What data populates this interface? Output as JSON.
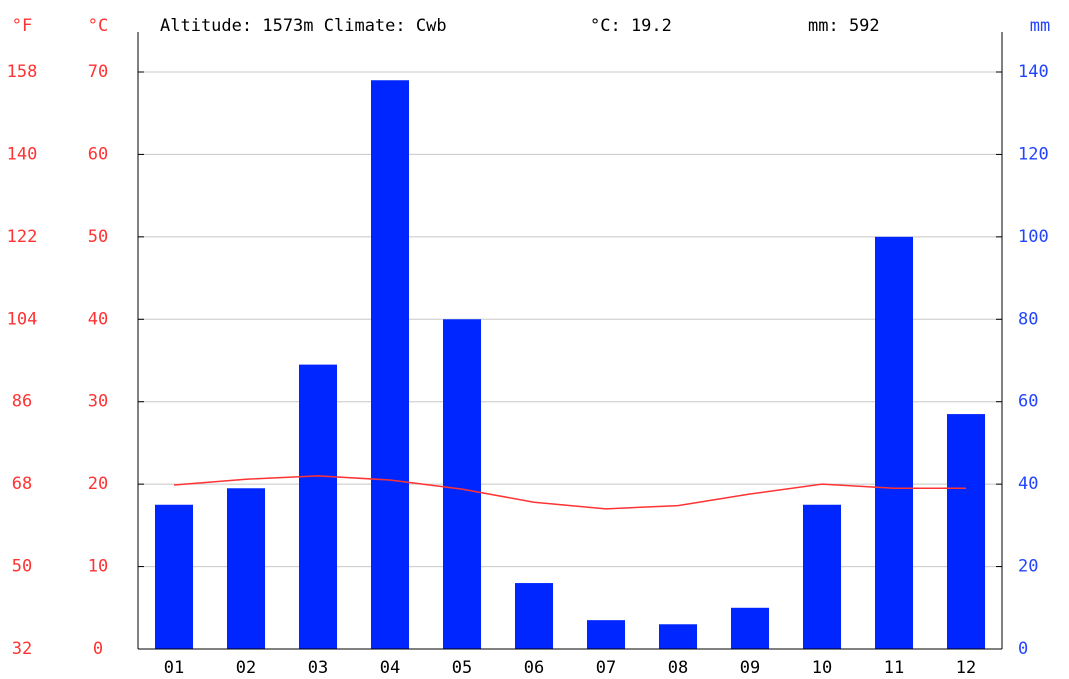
{
  "chart_data": {
    "type": "bar-line",
    "title": "Altitude: 1573m Climate: Cwb",
    "subtitle_temp": "°C: 19.2",
    "subtitle_precip": "mm: 592",
    "y3_label": "°F",
    "y_label": "°C",
    "y2_label": "mm",
    "categories": [
      "01",
      "02",
      "03",
      "04",
      "05",
      "06",
      "07",
      "08",
      "09",
      "10",
      "11",
      "12"
    ],
    "series": [
      {
        "name": "mm",
        "color": "#0026ff",
        "axis": "y2",
        "values": [
          35,
          39,
          69,
          138,
          80,
          16,
          7,
          6,
          10,
          35,
          100,
          57
        ]
      },
      {
        "name": "°C",
        "color": "#ff3333",
        "values": [
          19.9,
          20.6,
          21.0,
          20.5,
          19.4,
          17.8,
          17.0,
          17.4,
          18.8,
          20.0,
          19.5,
          19.5
        ]
      }
    ],
    "ylim": [
      0,
      70
    ],
    "yticks": [
      0,
      10,
      20,
      30,
      40,
      50,
      60,
      70
    ],
    "y2lim": [
      0,
      140
    ],
    "y2ticks": [
      0,
      20,
      40,
      60,
      80,
      100,
      120,
      140
    ],
    "y3lim": [
      32,
      158
    ],
    "y3ticks": [
      32,
      50,
      68,
      86,
      104,
      122,
      140,
      158
    ],
    "grid": true
  }
}
